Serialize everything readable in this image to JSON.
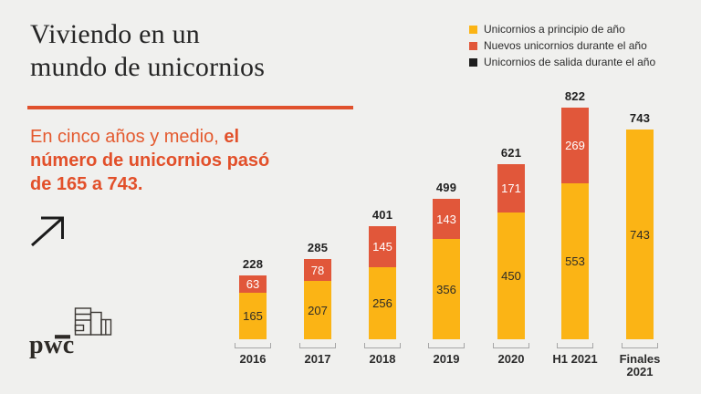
{
  "background_color": "#F0F0EE",
  "accent_color": "#E0512D",
  "title": {
    "line1": "Viviendo en un",
    "line2": "mundo de unicornios"
  },
  "subtitle": {
    "line1_regular": "En cinco años y medio, ",
    "line1_bold": "el",
    "line2_bold": "número de unicornios pasó",
    "line3_bold": "de 165 a 743."
  },
  "logo": {
    "text": "pwc"
  },
  "legend": {
    "items": [
      {
        "label": "Unicornios a principio de año",
        "color": "#FBB415"
      },
      {
        "label": "Nuevos unicornios durante el año",
        "color": "#E1573A"
      },
      {
        "label": "Unicornios de salida durante el año",
        "color": "#1E1E1E"
      }
    ]
  },
  "chart_data": {
    "type": "bar",
    "stacked": true,
    "grid": false,
    "legend_position": "top-right",
    "categories": [
      "2016",
      "2017",
      "2018",
      "2019",
      "2020",
      "H1 2021",
      "Finales 2021"
    ],
    "series": [
      {
        "name": "Unicornios a principio de año",
        "color": "#FBB415",
        "values": [
          165,
          207,
          256,
          356,
          450,
          553,
          743
        ]
      },
      {
        "name": "Nuevos unicornios durante el año",
        "color": "#E1573A",
        "values": [
          63,
          78,
          145,
          143,
          171,
          269,
          0
        ]
      },
      {
        "name": "Unicornios de salida durante el año",
        "color": "#1E1E1E",
        "values": [
          0,
          0,
          0,
          0,
          0,
          0,
          0
        ]
      }
    ],
    "totals": [
      228,
      285,
      401,
      499,
      621,
      822,
      743
    ],
    "ylim": [
      0,
      822
    ]
  }
}
